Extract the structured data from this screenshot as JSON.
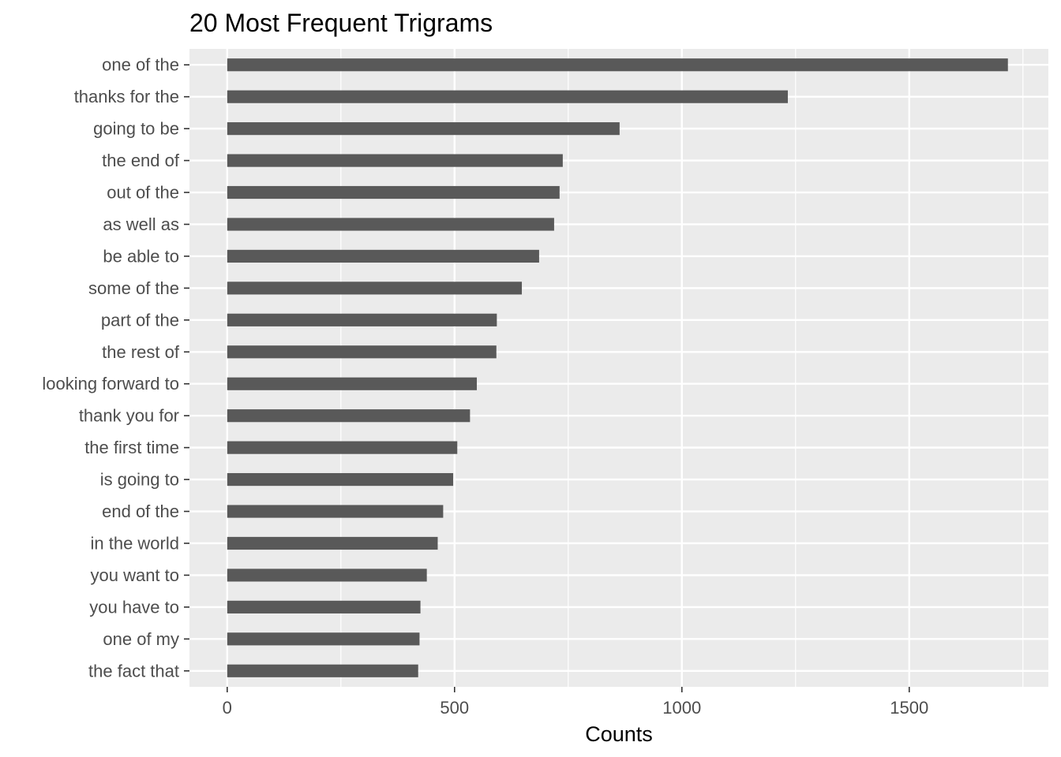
{
  "chart_data": {
    "type": "bar",
    "orientation": "horizontal",
    "title": "20 Most Frequent Trigrams",
    "xlabel": "Counts",
    "ylabel": "",
    "xlim": [
      -83,
      1806
    ],
    "x_ticks": [
      0,
      500,
      1000,
      1500
    ],
    "x_minor_ticks": [
      250,
      750,
      1250,
      1750
    ],
    "grid": true,
    "legend": "none",
    "colors": {
      "panel_background": "#ebebeb",
      "grid_line": "#ffffff",
      "bar_fill": "#595959",
      "tick_text": "#4d4d4d",
      "tick_mark": "#333333"
    },
    "categories": [
      "one of the",
      "thanks for the",
      "going to be",
      "the end of",
      "out of the",
      "as well as",
      "be able to",
      "some of the",
      "part of the",
      "the rest of",
      "looking forward to",
      "thank you for",
      "the first time",
      "is going to",
      "end of the",
      "in the world",
      "you want to",
      "you have to",
      "one of my",
      "the fact that"
    ],
    "values": [
      1717,
      1233,
      863,
      738,
      731,
      719,
      686,
      648,
      593,
      592,
      549,
      534,
      506,
      497,
      475,
      463,
      439,
      425,
      423,
      420
    ]
  }
}
